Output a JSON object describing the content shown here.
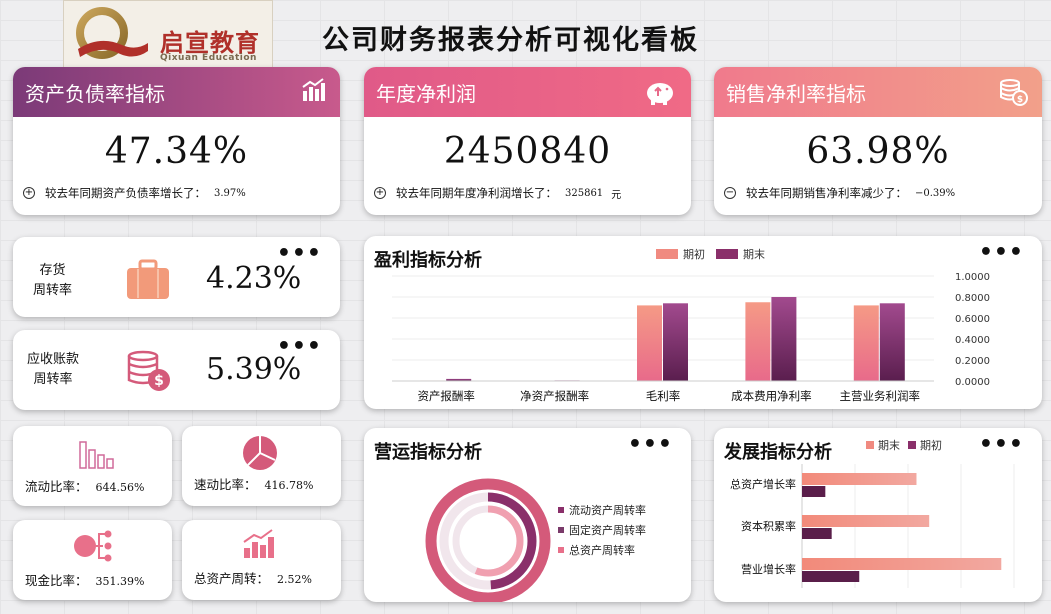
{
  "logo": {
    "cn": "启宣教育",
    "en": "Qixuan Education"
  },
  "title": "公司财务报表分析可视化看板",
  "kpis": [
    {
      "label": "资产负债率指标",
      "value": "47.34%",
      "sign": "+",
      "note": "较去年同期资产负债率增长了：",
      "change": "3.97%",
      "unit": "",
      "icon": "bar-chart-icon"
    },
    {
      "label": "年度净利润",
      "value": "2450840",
      "sign": "+",
      "note": "较去年同期年度净利润增长了：",
      "change": "325861",
      "unit": "元",
      "icon": "piggy-bank-icon"
    },
    {
      "label": "销售净利率指标",
      "value": "63.98%",
      "sign": "−",
      "note": "较去年同期销售净利率减少了：",
      "change": "−0.39%",
      "unit": "",
      "icon": "coins-icon"
    }
  ],
  "turnover": [
    {
      "label_line1": "存货",
      "label_line2": "周转率",
      "value": "4.23%",
      "icon": "briefcase-icon"
    },
    {
      "label_line1": "应收账款",
      "label_line2": "周转率",
      "value": "5.39%",
      "icon": "coin-stack-icon"
    }
  ],
  "ratios": [
    {
      "label": "流动比率：",
      "value": "644.56%",
      "icon": "bars-icon"
    },
    {
      "label": "速动比率：",
      "value": "416.78%",
      "icon": "pie-icon"
    },
    {
      "label": "现金比率：",
      "value": "351.39%",
      "icon": "network-icon"
    },
    {
      "label": "总资产周转：",
      "value": "2.52%",
      "icon": "growth-bars-icon"
    }
  ],
  "menu_dots": "•••",
  "colors": {
    "salmon": "#f28a7a",
    "plum": "#7a2f5e",
    "pink": "#e86a8a",
    "purple": "#a24a8e"
  },
  "chart_data": [
    {
      "type": "bar",
      "title": "盈利指标分析",
      "categories": [
        "资产报酬率",
        "净资产报酬率",
        "毛利率",
        "成本费用净利率",
        "主营业务利润率"
      ],
      "series": [
        {
          "name": "期初",
          "values": [
            0.005,
            0.003,
            0.72,
            0.75,
            0.72
          ]
        },
        {
          "name": "期末",
          "values": [
            0.02,
            0.006,
            0.74,
            0.8,
            0.74
          ]
        }
      ],
      "ylim": [
        0,
        1
      ],
      "yticks": [
        "1.0000",
        "0.8000",
        "0.6000",
        "0.4000",
        "0.2000",
        "0.0000"
      ],
      "legend": "top"
    },
    {
      "type": "pie",
      "title": "营运指标分析",
      "categories": [
        "流动资产周转率",
        "固定资产周转率",
        "总资产周转率"
      ],
      "values": [
        4.5,
        2.2,
        2.52
      ],
      "legend": "right"
    },
    {
      "type": "bar",
      "orientation": "horizontal",
      "title": "发展指标分析",
      "categories": [
        "总资产增长率",
        "资本积累率",
        "营业增长率"
      ],
      "series": [
        {
          "name": "期末",
          "values": [
            0.54,
            0.6,
            0.94
          ]
        },
        {
          "name": "期初",
          "values": [
            0.11,
            0.14,
            0.27
          ]
        }
      ],
      "xlim": [
        0,
        1
      ],
      "legend": "top"
    }
  ]
}
